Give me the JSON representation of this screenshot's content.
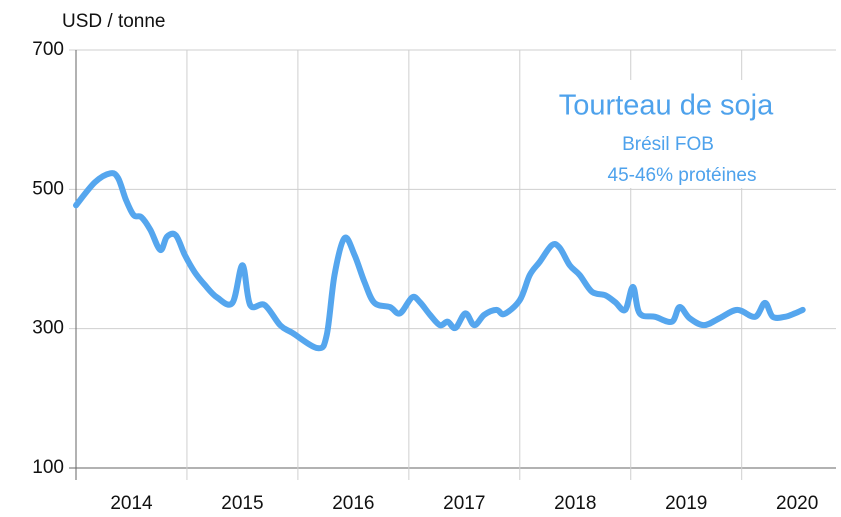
{
  "chart_data": {
    "type": "line",
    "y_label": "USD / tonne",
    "annotations": [
      "Tourteau de soja",
      "Brésil FOB",
      "45-46% protéines"
    ],
    "color": "#55a6ee",
    "grid": true,
    "xlim": [
      2014,
      2020.85
    ],
    "xticks": [
      2014,
      2015,
      2016,
      2017,
      2018,
      2019,
      2020
    ],
    "ylim": [
      100,
      700
    ],
    "yticks": [
      100,
      300,
      500,
      700
    ],
    "series": [
      {
        "name": "Tourteau de soja",
        "color": "#55a6ee",
        "x": [
          2014.0,
          2014.17,
          2014.31,
          2014.38,
          2014.45,
          2014.52,
          2014.59,
          2014.67,
          2014.76,
          2014.82,
          2014.9,
          2014.98,
          2015.07,
          2015.16,
          2015.27,
          2015.41,
          2015.5,
          2015.57,
          2015.7,
          2015.84,
          2015.95,
          2016.18,
          2016.26,
          2016.33,
          2016.42,
          2016.51,
          2016.6,
          2016.69,
          2016.83,
          2016.92,
          2017.03,
          2017.1,
          2017.19,
          2017.28,
          2017.35,
          2017.42,
          2017.51,
          2017.59,
          2017.68,
          2017.79,
          2017.86,
          2018.0,
          2018.09,
          2018.18,
          2018.29,
          2018.36,
          2018.45,
          2018.54,
          2018.65,
          2018.77,
          2018.86,
          2018.95,
          2019.02,
          2019.08,
          2019.22,
          2019.37,
          2019.44,
          2019.53,
          2019.66,
          2019.8,
          2019.96,
          2020.12,
          2020.21,
          2020.28,
          2020.39,
          2020.48,
          2020.55
        ],
        "values": [
          477,
          510,
          523,
          516,
          485,
          463,
          460,
          442,
          413,
          432,
          434,
          406,
          381,
          363,
          345,
          337,
          391,
          334,
          334,
          305,
          294,
          272,
          291,
          377,
          430,
          406,
          367,
          337,
          331,
          322,
          345,
          338,
          320,
          305,
          310,
          301,
          322,
          305,
          320,
          327,
          321,
          341,
          377,
          396,
          420,
          416,
          391,
          377,
          353,
          348,
          338,
          327,
          360,
          322,
          317,
          310,
          331,
          315,
          305,
          315,
          327,
          317,
          337,
          317,
          317,
          322,
          327
        ]
      }
    ]
  }
}
